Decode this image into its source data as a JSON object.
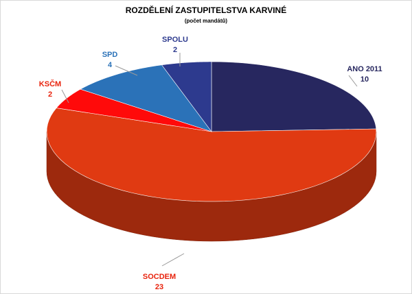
{
  "chart_data": {
    "type": "pie",
    "title": "ROZDĚLENÍ ZASTUPITELSTVA KARVINÉ",
    "subtitle": "(počet mandátů)",
    "categories": [
      "ANO 2011",
      "SOCDEM",
      "KSČM",
      "SPD",
      "SPOLU"
    ],
    "values": [
      10,
      23,
      2,
      4,
      2
    ],
    "colors": [
      "#27275f",
      "#e03a12",
      "#ff0a0a",
      "#2b72b8",
      "#2d3a8e"
    ]
  }
}
